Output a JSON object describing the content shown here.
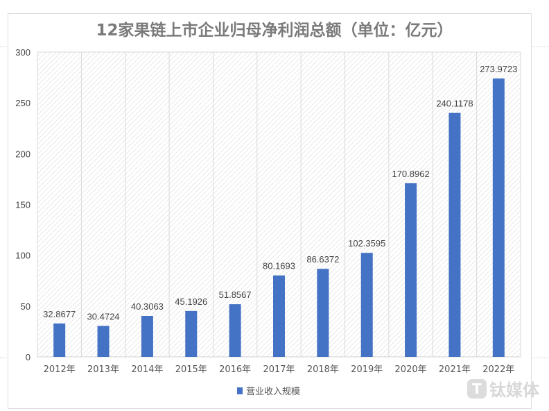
{
  "chart_data": {
    "type": "bar",
    "title": "12家果链上市企业归母净利润总额（单位：亿元）",
    "categories": [
      "2012年",
      "2013年",
      "2014年",
      "2015年",
      "2016年",
      "2017年",
      "2018年",
      "2019年",
      "2020年",
      "2021年",
      "2022年"
    ],
    "series": [
      {
        "name": "营业收入规模",
        "values": [
          32.8677,
          30.4724,
          40.3063,
          45.1926,
          51.8567,
          80.1693,
          86.6372,
          102.3595,
          170.8962,
          240.1178,
          273.9723
        ],
        "color": "#4472c4"
      }
    ],
    "data_labels": [
      "32.8677",
      "30.4724",
      "40.3063",
      "45.1926",
      "51.8567",
      "80.1693",
      "86.6372",
      "102.3595",
      "170.8962",
      "240.1178",
      "273.9723"
    ],
    "ylim": [
      0,
      300
    ],
    "yticks": [
      0,
      50,
      100,
      150,
      200,
      250,
      300
    ],
    "grid": "vertical",
    "legend": "bottom",
    "xlabel": "",
    "ylabel": ""
  },
  "watermark": {
    "logo": "T",
    "text": "钛媒体"
  }
}
